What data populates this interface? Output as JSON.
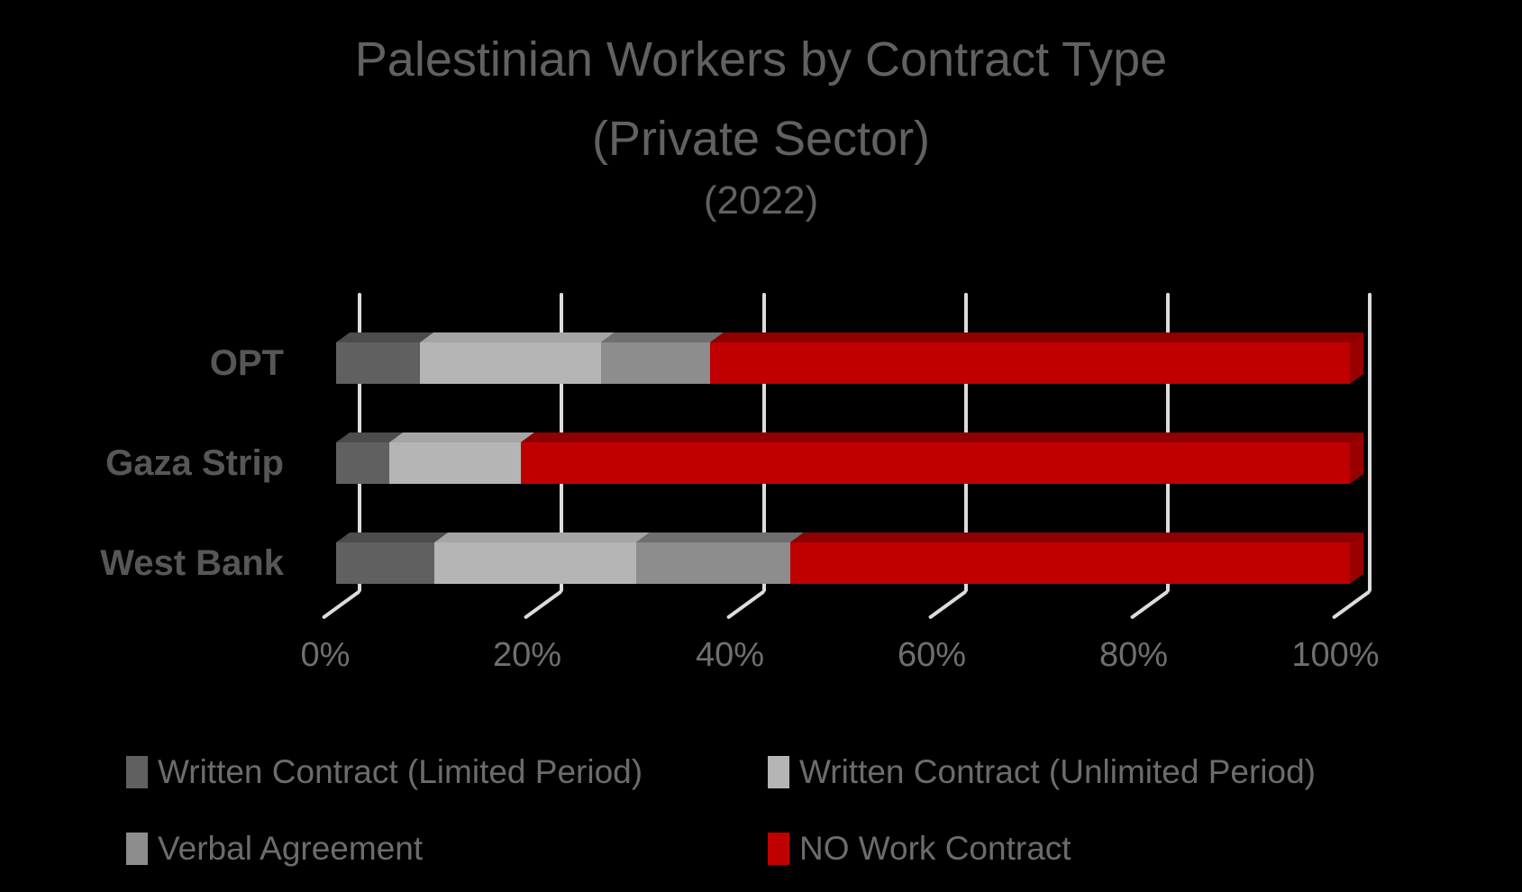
{
  "title": {
    "line1": "Palestinian Workers by Contract Type",
    "line2": "(Private Sector)",
    "line3": "(2022)"
  },
  "chart_data": {
    "type": "bar",
    "orientation": "horizontal",
    "stacking": "100%-stacked-3d",
    "title": "Palestinian Workers by Contract Type (Private Sector) (2022)",
    "categories": [
      "OPT",
      "Gaza Strip",
      "West Bank"
    ],
    "series": [
      {
        "name": "Written Contract (Limited Period)",
        "color": "#606060",
        "color_top": "#4c4c4c",
        "values": [
          8.3,
          5.2,
          9.7
        ]
      },
      {
        "name": "Written Contract (Unlimited Period)",
        "color": "#b5b5b5",
        "color_top": "#a5a5a5",
        "values": [
          17.8,
          13.0,
          19.9
        ]
      },
      {
        "name": "Verbal Agreement",
        "color": "#8d8d8d",
        "color_top": "#6f6f6f",
        "values": [
          10.8,
          0.0,
          15.2
        ]
      },
      {
        "name": "NO Work Contract",
        "color": "#c00000",
        "color_top": "#8f0000",
        "color_side": "#9a0000",
        "values": [
          63.1,
          81.8,
          55.2
        ]
      }
    ],
    "x_axis": {
      "tick_labels": [
        "0%",
        "20%",
        "40%",
        "60%",
        "80%",
        "100%"
      ],
      "min": 0,
      "max": 100,
      "unit": "%"
    },
    "gridlines": true,
    "legend_position": "bottom"
  },
  "legend": {
    "items": [
      {
        "label": "Written Contract (Limited Period)",
        "swatch": "#606060"
      },
      {
        "label": "Written Contract (Unlimited Period)",
        "swatch": "#b5b5b5"
      },
      {
        "label": "Verbal Agreement",
        "swatch": "#8d8d8d"
      },
      {
        "label": "NO Work Contract",
        "swatch": "#c00000"
      }
    ]
  },
  "colors": {
    "background": "#000000",
    "gridline": "#dcdcdc",
    "title_text": "#616161",
    "category_text": "#575757",
    "axis_text": "#6f6f6f",
    "legend_text": "#6c6c6c"
  }
}
